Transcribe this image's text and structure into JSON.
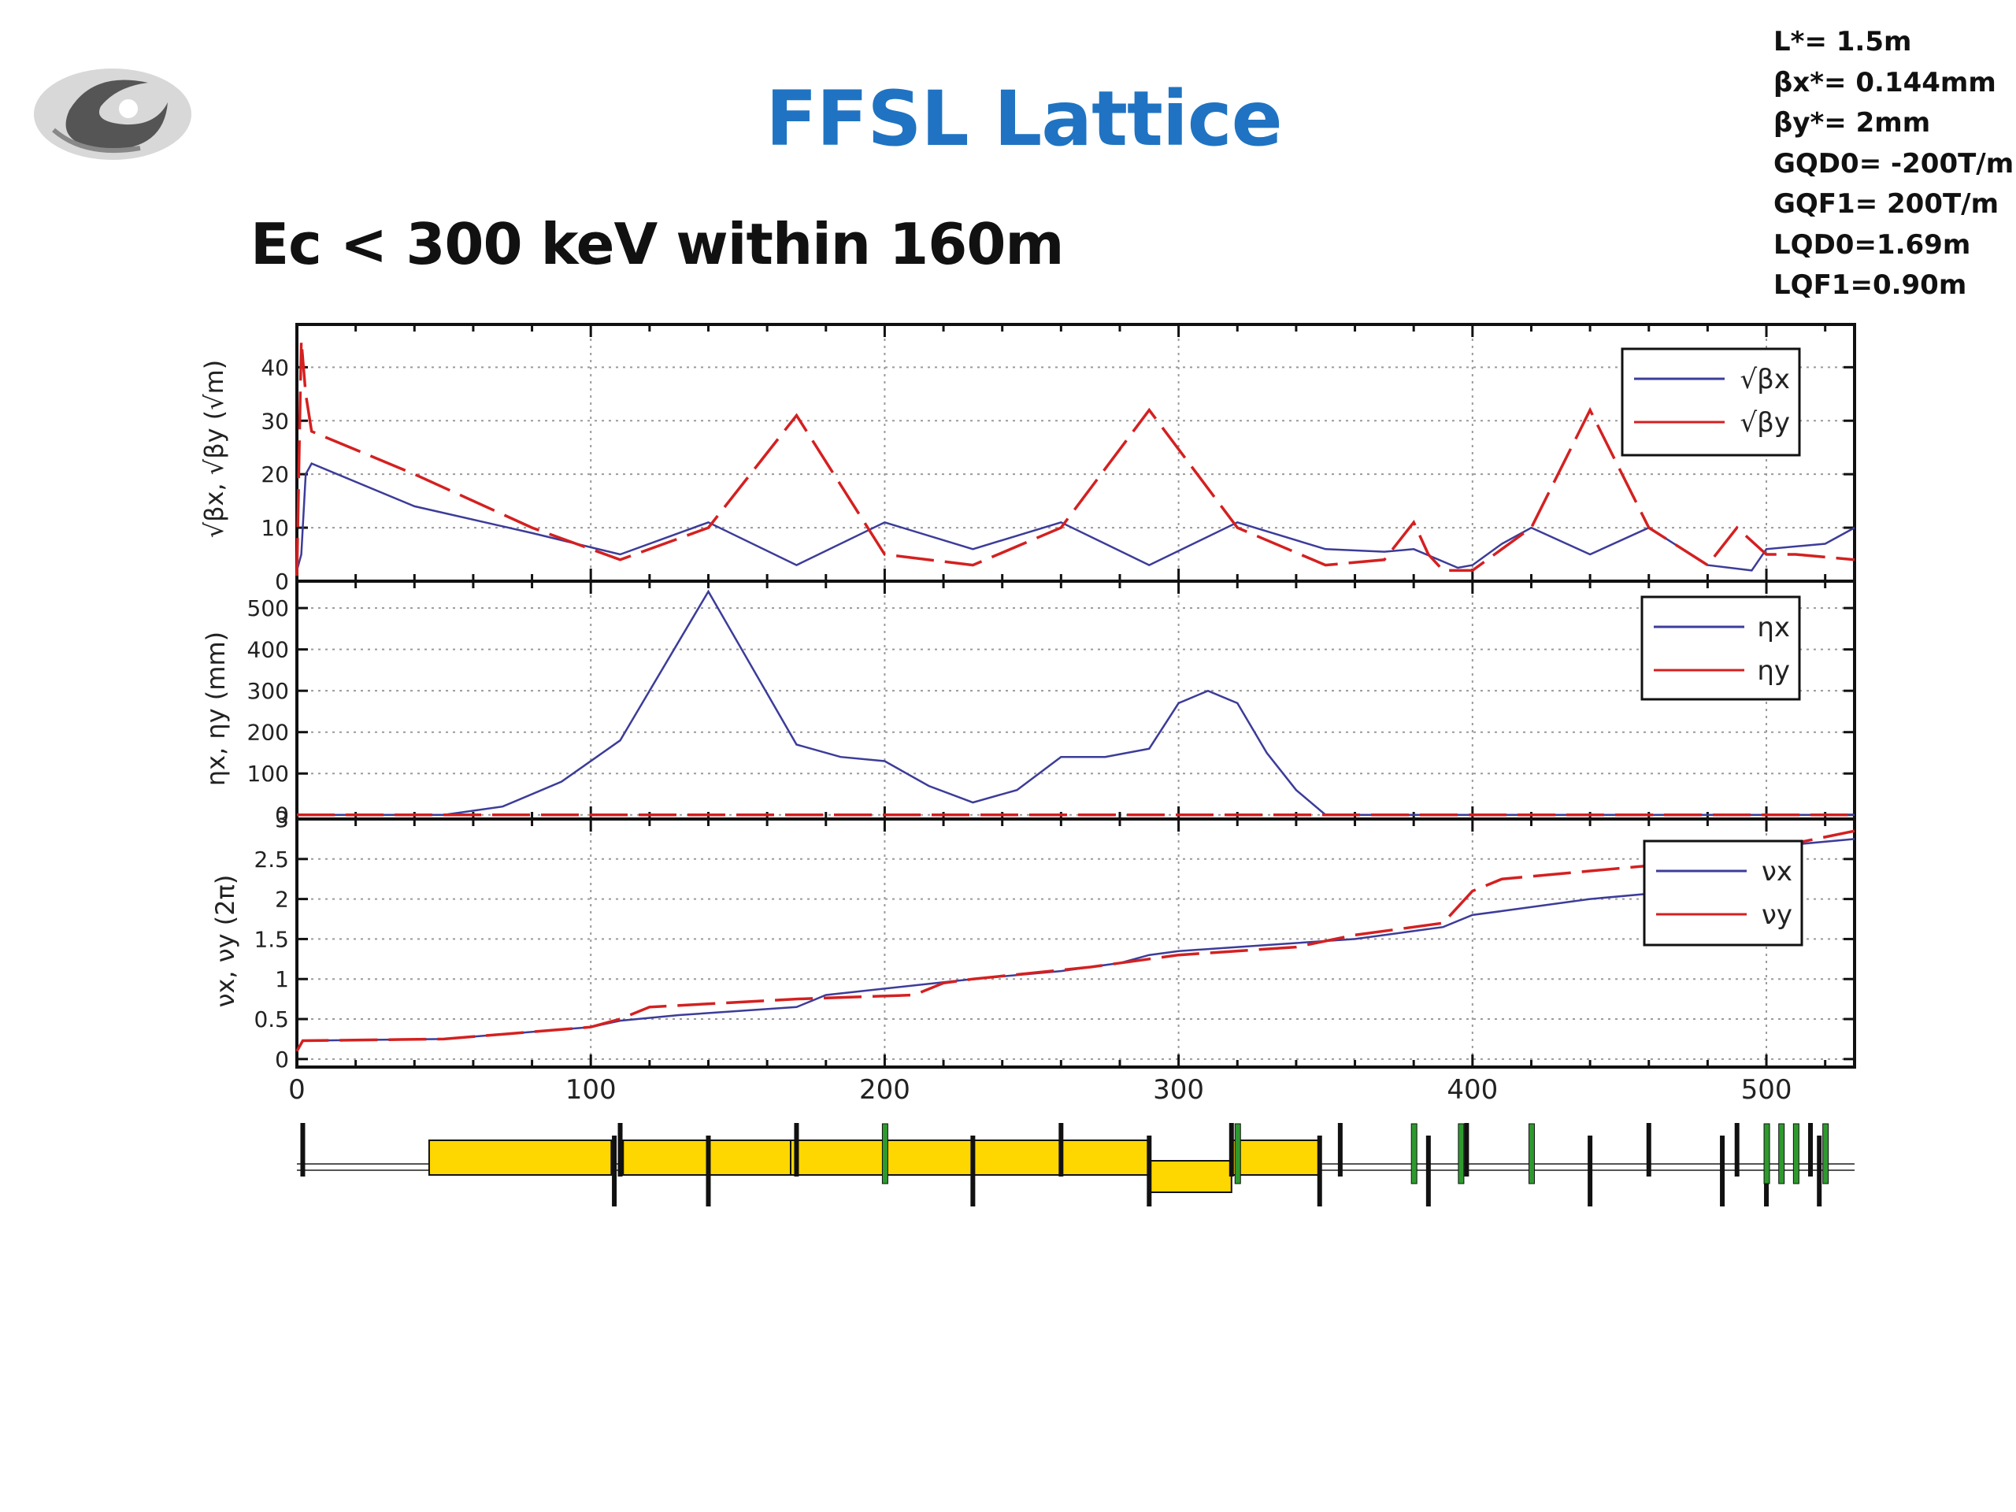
{
  "slide": {
    "title": "FFSL Lattice",
    "subtitle": "Ec < 300 keV within 160m",
    "params": [
      "L*= 1.5m",
      "βx*= 0.144mm",
      "βy*= 2mm",
      "GQD0= -200T/m",
      "GQF1= 200T/m",
      "LQD0=1.69m",
      "LQF1=0.90m"
    ]
  },
  "colors": {
    "title": "#1f73c2",
    "x_series": "#3c3c9a",
    "y_series": "#d42020",
    "dipole": "#ffd700",
    "sextupole": "#2e9a2e"
  },
  "chart_data": [
    {
      "type": "line",
      "xlim": [
        0,
        530
      ],
      "ylim": [
        0,
        48
      ],
      "yticks": [
        "0",
        "10",
        "20",
        "30",
        "40"
      ],
      "ylabel": "√βx, √βy (√m)",
      "grid": true,
      "legend_position": "top-right",
      "legend": [
        "√βx",
        "√βy"
      ],
      "series": [
        {
          "name": "√βx",
          "style": "solid",
          "x": [
            0,
            1.5,
            3,
            5,
            40,
            80,
            110,
            140,
            170,
            200,
            230,
            260,
            290,
            320,
            350,
            370,
            380,
            395,
            400,
            410,
            420,
            440,
            460,
            480,
            495,
            500,
            520,
            530
          ],
          "y": [
            2,
            5,
            20,
            22,
            14,
            9,
            5,
            11,
            3,
            11,
            6,
            11,
            3,
            11,
            6,
            5.5,
            6,
            2.5,
            3,
            7,
            10,
            5,
            10,
            3,
            2,
            6,
            7,
            10
          ]
        },
        {
          "name": "√βy",
          "style": "dashed",
          "x": [
            0,
            1.5,
            3,
            5,
            40,
            80,
            110,
            140,
            170,
            200,
            230,
            260,
            290,
            320,
            350,
            370,
            380,
            385,
            390,
            400,
            420,
            440,
            460,
            480,
            490,
            500,
            510,
            530
          ],
          "y": [
            1,
            45,
            35,
            28,
            20,
            10,
            4,
            10,
            31,
            5,
            3,
            10,
            32,
            10,
            3,
            4,
            11,
            5,
            2,
            2,
            10,
            32,
            10,
            3,
            10,
            5,
            5,
            4
          ]
        }
      ]
    },
    {
      "type": "line",
      "xlim": [
        0,
        530
      ],
      "ylim": [
        -10,
        565
      ],
      "yticks": [
        "0",
        "100",
        "200",
        "300",
        "400",
        "500"
      ],
      "ylabel": "ηx, ηy (mm)",
      "grid": true,
      "legend_position": "top-right",
      "legend": [
        "ηx",
        "ηy"
      ],
      "series": [
        {
          "name": "ηx",
          "style": "solid",
          "x": [
            0,
            50,
            70,
            90,
            110,
            140,
            170,
            185,
            200,
            215,
            230,
            245,
            260,
            275,
            290,
            300,
            310,
            320,
            330,
            340,
            350,
            530
          ],
          "y": [
            0,
            0,
            20,
            80,
            180,
            540,
            170,
            140,
            130,
            70,
            30,
            60,
            140,
            140,
            160,
            270,
            300,
            270,
            150,
            60,
            0,
            0
          ]
        },
        {
          "name": "ηy",
          "style": "dashed",
          "x": [
            0,
            530
          ],
          "y": [
            0,
            0
          ]
        }
      ]
    },
    {
      "type": "line",
      "xlim": [
        0,
        530
      ],
      "ylim": [
        -0.1,
        3.0
      ],
      "yticks": [
        "0",
        "0.5",
        "1",
        "1.5",
        "2",
        "2.5",
        "3"
      ],
      "ylabel": "νx, νy (2π)",
      "grid": true,
      "legend_position": "top-right",
      "legend": [
        "νx",
        "νy"
      ],
      "series": [
        {
          "name": "νx",
          "style": "solid",
          "x": [
            0,
            2,
            50,
            100,
            110,
            130,
            170,
            180,
            230,
            260,
            280,
            290,
            300,
            320,
            340,
            360,
            380,
            390,
            400,
            410,
            440,
            470,
            490,
            500,
            530
          ],
          "y": [
            0.1,
            0.23,
            0.25,
            0.4,
            0.48,
            0.55,
            0.65,
            0.8,
            1.0,
            1.1,
            1.2,
            1.3,
            1.35,
            1.4,
            1.45,
            1.5,
            1.6,
            1.65,
            1.8,
            1.85,
            2.0,
            2.1,
            2.35,
            2.65,
            2.75
          ]
        },
        {
          "name": "νy",
          "style": "dashed",
          "x": [
            0,
            2,
            50,
            100,
            110,
            120,
            170,
            210,
            220,
            230,
            270,
            290,
            300,
            340,
            360,
            380,
            390,
            400,
            410,
            440,
            470,
            490,
            510,
            530
          ],
          "y": [
            0.1,
            0.23,
            0.25,
            0.4,
            0.5,
            0.65,
            0.75,
            0.8,
            0.95,
            1.0,
            1.15,
            1.25,
            1.3,
            1.4,
            1.55,
            1.65,
            1.7,
            2.1,
            2.25,
            2.35,
            2.45,
            2.55,
            2.7,
            2.85
          ]
        }
      ]
    }
  ],
  "xaxis": {
    "ticks": [
      "0",
      "100",
      "200",
      "300",
      "400",
      "500"
    ]
  },
  "lattice": {
    "dipoles": [
      [
        45,
        107
      ],
      [
        111,
        168
      ],
      [
        168,
        230
      ],
      [
        230,
        290
      ],
      [
        318,
        348
      ]
    ],
    "reverse_dipoles": [
      [
        290,
        318
      ]
    ],
    "quads": [
      2,
      108,
      110,
      140,
      170,
      230,
      260,
      290,
      318,
      348,
      355,
      385,
      398,
      440,
      460,
      485,
      490,
      500,
      515,
      518
    ],
    "sextupoles": [
      200,
      320,
      380,
      396,
      420,
      500,
      505,
      510,
      520
    ]
  }
}
